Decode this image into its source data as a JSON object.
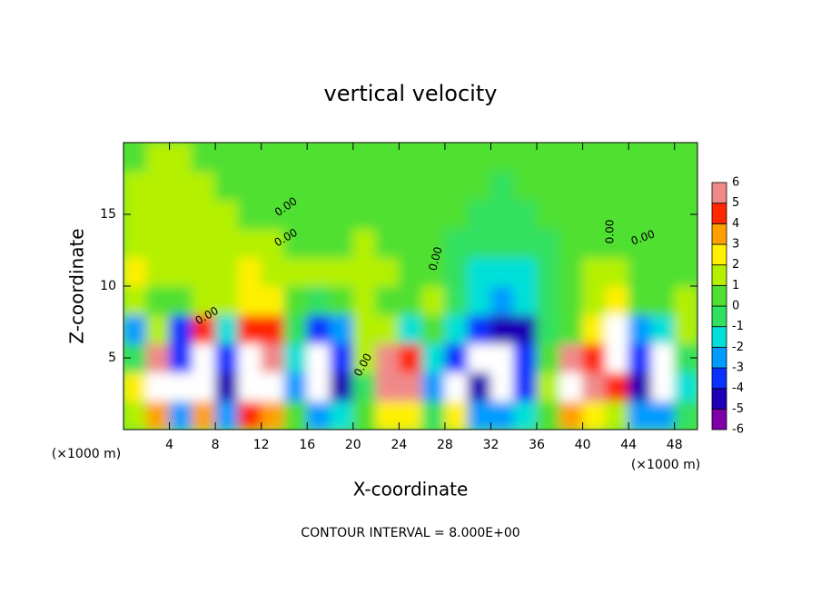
{
  "chart_data": {
    "type": "heatmap",
    "title": "vertical velocity",
    "x_label": "X-coordinate",
    "y_label": "Z-coordinate",
    "x_unit": "(×1000 m)",
    "footer": "CONTOUR INTERVAL = 8.000E+00",
    "contour_label": "0.00",
    "x": [
      1,
      3,
      5,
      7,
      9,
      11,
      13,
      15,
      17,
      19,
      21,
      23,
      25,
      27,
      29,
      31,
      33,
      35,
      37,
      39,
      41,
      43,
      45,
      47,
      49
    ],
    "y": [
      1,
      3,
      5,
      7,
      9,
      11,
      13,
      15,
      17,
      19
    ],
    "values": [
      [
        1,
        3,
        -3,
        3,
        -3,
        4,
        3,
        0,
        -3,
        -2,
        0,
        2,
        2,
        -1,
        2,
        -3,
        -3,
        -2,
        0,
        3,
        2,
        1,
        -3,
        -3,
        -1
      ],
      [
        2,
        7,
        -7,
        7,
        -5,
        7,
        7,
        -3,
        -7,
        -5,
        -1,
        5,
        5,
        -3,
        7,
        -5,
        -7,
        -4,
        1,
        7,
        5,
        4,
        -5,
        -7,
        -2
      ],
      [
        -1,
        5,
        -4,
        7,
        -4,
        7,
        5,
        -2,
        -7,
        -4,
        1,
        5,
        4,
        -2,
        -4,
        -7,
        -7,
        -4,
        0,
        5,
        4,
        7,
        -4,
        -7,
        -1
      ],
      [
        -3,
        1,
        -4,
        4,
        -2,
        4,
        4,
        -1,
        -4,
        -3,
        1,
        1,
        -2,
        0,
        -2,
        -4,
        -5,
        -5,
        -1,
        0,
        2,
        7,
        -3,
        -2,
        1
      ],
      [
        1,
        0,
        0,
        1,
        1,
        2,
        2,
        0,
        -1,
        0,
        1,
        0,
        0,
        1,
        -1,
        -2,
        -3,
        -2,
        -1,
        0,
        1,
        2,
        0,
        0,
        1
      ],
      [
        2,
        1,
        1,
        1,
        1,
        2,
        1,
        1,
        1,
        1,
        1,
        1,
        0,
        0,
        -1,
        -2,
        -2,
        -2,
        -1,
        0,
        1,
        1,
        0,
        0,
        0
      ],
      [
        1,
        1,
        1,
        1,
        1,
        1,
        1,
        0,
        0,
        0,
        1,
        0,
        0,
        0,
        -1,
        -1,
        -1,
        -1,
        -1,
        0,
        0,
        0,
        0,
        0,
        0
      ],
      [
        1,
        1,
        1,
        1,
        1,
        0,
        0,
        0,
        0,
        0,
        0,
        0,
        0,
        0,
        0,
        -1,
        -1,
        -1,
        0,
        0,
        0,
        0,
        0,
        0,
        0
      ],
      [
        1,
        1,
        1,
        1,
        0,
        0,
        0,
        0,
        0,
        0,
        0,
        0,
        0,
        0,
        0,
        0,
        -1,
        0,
        0,
        0,
        0,
        0,
        0,
        0,
        0
      ],
      [
        0,
        1,
        1,
        0,
        0,
        0,
        0,
        0,
        0,
        0,
        0,
        0,
        0,
        0,
        0,
        0,
        0,
        0,
        0,
        0,
        0,
        0,
        0,
        0,
        0
      ]
    ],
    "xlim": [
      0,
      50
    ],
    "xticks": [
      4,
      8,
      12,
      16,
      20,
      24,
      28,
      32,
      36,
      40,
      44,
      48
    ],
    "ylim": [
      0,
      20
    ],
    "yticks": [
      5,
      10,
      15
    ],
    "colorbar": {
      "ticks": [
        -6,
        -5,
        -4,
        -3,
        -2,
        -1,
        0,
        1,
        2,
        3,
        4,
        5,
        6
      ],
      "colors": [
        "#8000a8",
        "#1e00b4",
        "#0a32ff",
        "#009bff",
        "#00e0d8",
        "#30e060",
        "#50e030",
        "#b4f000",
        "#fff000",
        "#ffa000",
        "#ff2800",
        "#f08a8a"
      ],
      "beyond_color": "#ffffff"
    }
  }
}
